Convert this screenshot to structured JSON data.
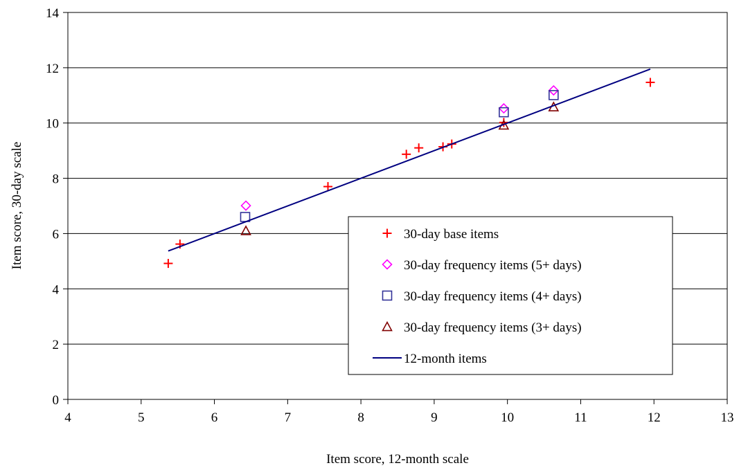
{
  "chart_data": {
    "type": "scatter",
    "title": "",
    "xlabel": "Item score, 12-month scale",
    "ylabel": "Item score, 30-day scale",
    "xlim": [
      4,
      13
    ],
    "ylim": [
      0,
      14
    ],
    "xticks": [
      4,
      5,
      6,
      7,
      8,
      9,
      10,
      11,
      12,
      13
    ],
    "yticks": [
      0,
      2,
      4,
      6,
      8,
      10,
      12,
      14
    ],
    "grid": "horizontal",
    "legend_position": "lower-right",
    "series": [
      {
        "name": "30-day base items",
        "marker": "plus",
        "color": "#ff0000",
        "points": [
          [
            5.37,
            4.92
          ],
          [
            5.53,
            5.62
          ],
          [
            7.55,
            7.7
          ],
          [
            8.62,
            8.87
          ],
          [
            8.79,
            9.1
          ],
          [
            9.12,
            9.14
          ],
          [
            9.24,
            9.24
          ],
          [
            9.95,
            10.02
          ],
          [
            11.95,
            11.47
          ]
        ]
      },
      {
        "name": "30-day frequency items (5+ days)",
        "marker": "diamond",
        "color": "#ff00ff",
        "points": [
          [
            6.43,
            7.01
          ],
          [
            9.95,
            10.53
          ],
          [
            10.63,
            11.18
          ]
        ]
      },
      {
        "name": "30-day frequency items (4+ days)",
        "marker": "square",
        "color": "#333399",
        "points": [
          [
            6.42,
            6.6
          ],
          [
            9.95,
            10.39
          ],
          [
            10.63,
            11.01
          ]
        ]
      },
      {
        "name": "30-day frequency items (3+ days)",
        "marker": "triangle",
        "color": "#800000",
        "points": [
          [
            6.43,
            6.1
          ],
          [
            9.95,
            9.92
          ],
          [
            10.63,
            10.58
          ]
        ]
      },
      {
        "name": "12-month items",
        "marker": "line",
        "color": "#000080",
        "points": [
          [
            5.37,
            5.37
          ],
          [
            11.95,
            11.95
          ]
        ]
      }
    ]
  }
}
